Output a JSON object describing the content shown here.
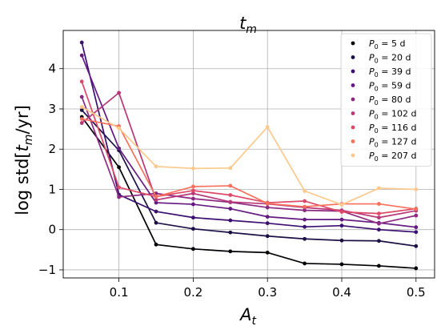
{
  "chart_data": {
    "type": "line",
    "title": "t_m",
    "xlabel": "A_t",
    "ylabel": "log std[t_m/yr]",
    "xlim": [
      0.025,
      0.525
    ],
    "ylim": [
      -1.2,
      4.95
    ],
    "xticks": [
      0.1,
      0.2,
      0.3,
      0.4,
      0.5
    ],
    "xtick_labels": [
      "0.1",
      "0.2",
      "0.3",
      "0.4",
      "0.5"
    ],
    "yticks": [
      -1,
      0,
      1,
      2,
      3,
      4
    ],
    "ytick_labels": [
      "−1",
      "0",
      "1",
      "2",
      "3",
      "4"
    ],
    "grid": true,
    "legend_position": "top-right",
    "x": [
      0.05,
      0.1,
      0.15,
      0.2,
      0.25,
      0.3,
      0.35,
      0.4,
      0.45,
      0.5
    ],
    "series": [
      {
        "name": "5 d",
        "color": "#000004",
        "values": [
          2.8,
          1.55,
          -0.37,
          -0.48,
          -0.54,
          -0.57,
          -0.84,
          -0.86,
          -0.9,
          -0.96
        ]
      },
      {
        "name": "20 d",
        "color": "#1c1044",
        "values": [
          2.97,
          1.97,
          0.17,
          0.02,
          -0.07,
          -0.16,
          -0.23,
          -0.27,
          -0.28,
          -0.41
        ]
      },
      {
        "name": "39 d",
        "color": "#3b0f70",
        "values": [
          4.65,
          0.87,
          0.45,
          0.3,
          0.23,
          0.16,
          0.07,
          0.1,
          0.0,
          -0.06
        ]
      },
      {
        "name": "59 d",
        "color": "#641a80",
        "values": [
          4.33,
          2.02,
          0.67,
          0.63,
          0.52,
          0.32,
          0.25,
          0.25,
          0.17,
          0.06
        ]
      },
      {
        "name": "80 d",
        "color": "#8c2981",
        "values": [
          3.3,
          0.81,
          0.9,
          0.77,
          0.68,
          0.55,
          0.48,
          0.46,
          0.15,
          0.35
        ]
      },
      {
        "name": "102 d",
        "color": "#b73779",
        "values": [
          2.65,
          3.4,
          0.74,
          0.9,
          0.69,
          0.64,
          0.55,
          0.48,
          0.3,
          0.47
        ]
      },
      {
        "name": "116 d",
        "color": "#de4968",
        "values": [
          3.68,
          1.05,
          0.82,
          0.97,
          0.86,
          0.67,
          0.71,
          0.44,
          0.4,
          0.52
        ]
      },
      {
        "name": "127 d",
        "color": "#f7705c",
        "values": [
          2.75,
          2.57,
          0.82,
          1.07,
          1.09,
          0.65,
          0.57,
          0.64,
          0.64,
          0.51
        ]
      },
      {
        "name": "207 d",
        "color": "#fcc88c",
        "values": [
          3.05,
          2.52,
          1.57,
          1.52,
          1.53,
          2.55,
          0.96,
          0.62,
          1.03,
          1.0
        ]
      }
    ]
  }
}
